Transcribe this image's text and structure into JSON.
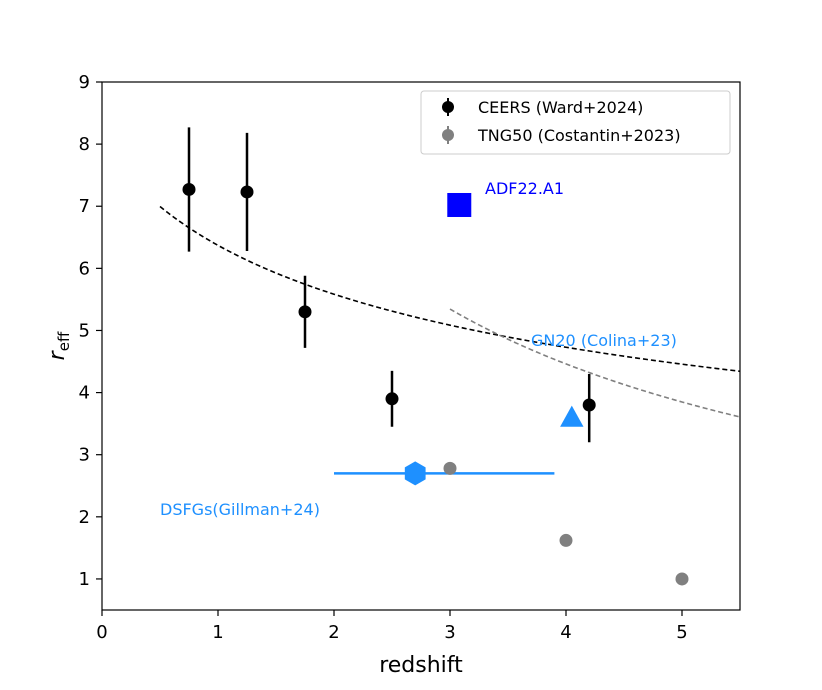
{
  "chart_data": {
    "type": "scatter",
    "xlabel": "redshift",
    "ylabel": "r",
    "ylabel_sub": "eff",
    "xlim": [
      0,
      5.5
    ],
    "ylim": [
      0.5,
      9
    ],
    "xticks": [
      0,
      1,
      2,
      3,
      4,
      5
    ],
    "yticks": [
      1,
      2,
      3,
      4,
      5,
      6,
      7,
      8,
      9
    ],
    "xtick_labels": [
      "0",
      "1",
      "2",
      "3",
      "4",
      "5"
    ],
    "ytick_labels": [
      "1",
      "2",
      "3",
      "4",
      "5",
      "6",
      "7",
      "8",
      "9"
    ],
    "legend_position": "top-right",
    "grid": false,
    "series": [
      {
        "name": "CEERS (Ward+2024)",
        "color": "#000000",
        "marker": "circle",
        "points": [
          {
            "x": 0.75,
            "y": 7.27,
            "yerr_low": 1.0,
            "yerr_high": 1.0
          },
          {
            "x": 1.25,
            "y": 7.23,
            "yerr_low": 0.95,
            "yerr_high": 0.95
          },
          {
            "x": 1.75,
            "y": 5.3,
            "yerr_low": 0.58,
            "yerr_high": 0.58
          },
          {
            "x": 2.5,
            "y": 3.9,
            "yerr_low": 0.45,
            "yerr_high": 0.45
          },
          {
            "x": 4.2,
            "y": 3.8,
            "yerr_low": 0.6,
            "yerr_high": 0.5
          }
        ]
      },
      {
        "name": "TNG50 (Costantin+2023)",
        "color": "#808080",
        "marker": "circle",
        "points": [
          {
            "x": 3.0,
            "y": 2.78
          },
          {
            "x": 4.0,
            "y": 1.62
          },
          {
            "x": 5.0,
            "y": 1.0
          }
        ]
      }
    ],
    "fits": [
      {
        "color": "#000000",
        "style": "dashed",
        "A": 7.98,
        "B": 0.325,
        "x_from": 0.5,
        "x_to": 5.5
      },
      {
        "color": "#808080",
        "style": "dashed",
        "A": 16.43,
        "B": 0.81,
        "x_from": 3.0,
        "x_to": 5.5
      }
    ],
    "annotated_points": [
      {
        "label": "ADF22.A1",
        "x": 3.08,
        "y": 7.02,
        "marker": "square",
        "color": "#0000ff"
      },
      {
        "label": "GN20 (Colina+23)",
        "x": 4.05,
        "y": 3.58,
        "marker": "triangle",
        "color": "#1e90ff"
      },
      {
        "label": "DSFGs(Gillman+24)",
        "x": 2.7,
        "y": 2.7,
        "marker": "hexagon",
        "color": "#1e90ff",
        "xerr_low": 0.7,
        "xerr_high": 1.2
      }
    ]
  }
}
